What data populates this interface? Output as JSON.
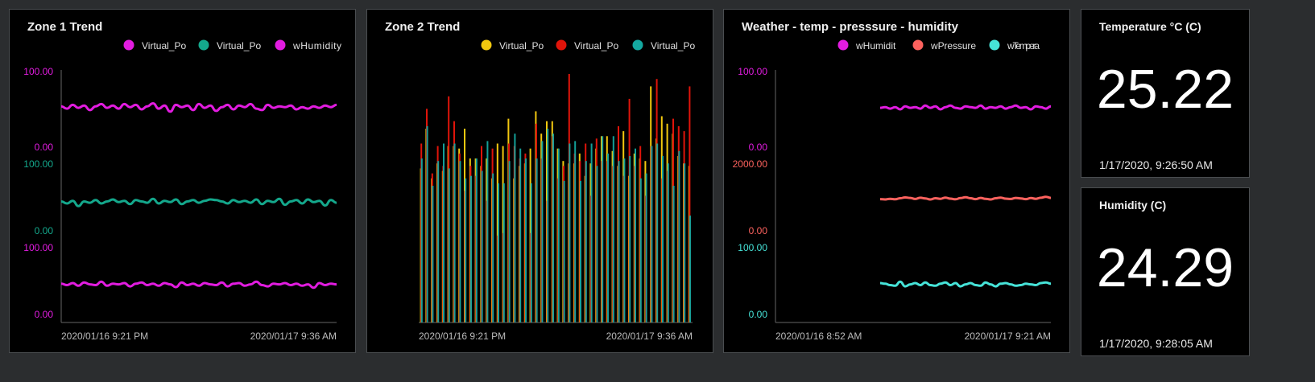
{
  "panels": [
    {
      "title": "Zone 1 Trend"
    },
    {
      "title": "Zone 2 Trend"
    },
    {
      "title": "Weather - temp - presssure - humidity"
    }
  ],
  "tiles": [
    {
      "title": "Temperature °C (C)",
      "value": "25.22",
      "timestamp": "1/17/2020, 9:26:50 AM"
    },
    {
      "title": "Humidity (C)",
      "value": "24.29",
      "timestamp": "1/17/2020, 9:28:05 AM"
    }
  ],
  "chart_data": [
    {
      "type": "line",
      "title": "Zone 1 Trend",
      "legend": [
        "Virtual_Po",
        "Virtual_Po",
        "wHumidity"
      ],
      "legend_placement": "top-right",
      "x_range": [
        "2020/01/16 9:21 PM",
        "2020/01/17 9:36 AM"
      ],
      "x_ticks": [
        "2020/01/16 9:21 PM",
        "2020/01/17 9:36 AM"
      ],
      "series": [
        {
          "name": "Virtual_Po",
          "color": "#e21ce0",
          "ylim": [
            0,
            100
          ],
          "y_ticks": [
            "0.00",
            "100.00"
          ],
          "values": [
            54,
            51,
            56,
            52,
            55,
            49,
            54,
            57,
            52,
            55,
            51,
            57,
            53,
            56,
            50,
            54,
            58,
            51,
            55,
            47,
            56,
            53,
            55,
            49,
            57,
            52,
            55,
            48,
            53,
            56,
            50,
            55,
            53,
            57,
            51,
            49,
            56,
            52,
            54,
            53,
            55,
            50,
            53,
            51,
            54,
            52,
            55,
            53,
            56
          ]
        },
        {
          "name": "Virtual_Po",
          "color": "#14a88c",
          "ylim": [
            0,
            100
          ],
          "y_ticks": [
            "0.00",
            "100.00"
          ],
          "values": [
            44,
            41,
            45,
            37,
            44,
            42,
            46,
            41,
            44,
            47,
            43,
            45,
            40,
            46,
            44,
            42,
            48,
            41,
            45,
            43,
            47,
            40,
            44,
            46,
            42,
            45,
            47,
            46,
            44,
            41,
            46,
            43,
            45,
            42,
            47,
            40,
            45,
            43,
            48,
            39,
            44,
            46,
            41,
            47,
            43,
            45,
            38,
            46,
            42
          ]
        },
        {
          "name": "wHumidity",
          "color": "#e21ce0",
          "ylim": [
            0,
            100
          ],
          "y_ticks": [
            "0.00",
            "100.00"
          ],
          "values": [
            46,
            44,
            47,
            43,
            48,
            45,
            44,
            49,
            43,
            46,
            45,
            47,
            42,
            46,
            48,
            44,
            46,
            43,
            47,
            45,
            41,
            48,
            44,
            46,
            43,
            47,
            45,
            44,
            48,
            42,
            46,
            47,
            43,
            45,
            49,
            44,
            42,
            46,
            45,
            47,
            44,
            46,
            43,
            45,
            40,
            47,
            44,
            46,
            45
          ]
        }
      ]
    },
    {
      "type": "bar",
      "title": "Zone 2 Trend",
      "legend": [
        "Virtual_Po",
        "Virtual_Po",
        "Virtual_Po"
      ],
      "legend_placement": "top-right",
      "x_range": [
        "2020/01/16 9:21 PM",
        "2020/01/17 9:36 AM"
      ],
      "x_ticks": [
        "2020/01/16 9:21 PM",
        "2020/01/17 9:36 AM"
      ],
      "series": [
        {
          "name": "Virtual_Po",
          "color": "#f2c80f",
          "values": [
            62,
            78,
            58,
            64,
            61,
            71,
            71,
            70,
            78,
            66,
            66,
            63,
            66,
            58,
            72,
            71,
            82,
            58,
            63,
            64,
            70,
            85,
            76,
            81,
            81,
            70,
            65,
            64,
            64,
            68,
            59,
            64,
            70,
            75,
            75,
            69,
            63,
            77,
            59,
            68,
            66,
            65,
            95,
            74,
            83,
            80,
            76,
            67,
            64,
            63
          ]
        },
        {
          "name": "Virtual_Po",
          "color": "#e0140a",
          "values": [
            72,
            86,
            60,
            71,
            63,
            91,
            81,
            68,
            53,
            63,
            59,
            71,
            49,
            70,
            35,
            36,
            72,
            71,
            66,
            68,
            36,
            80,
            66,
            49,
            75,
            58,
            63,
            100,
            68,
            65,
            72,
            51,
            74,
            65,
            65,
            63,
            79,
            59,
            90,
            63,
            71,
            51,
            71,
            98,
            58,
            61,
            82,
            79,
            77,
            95
          ]
        },
        {
          "name": "Virtual_Po",
          "color": "#14a8a0",
          "values": [
            66,
            79,
            55,
            65,
            72,
            62,
            72,
            65,
            58,
            59,
            66,
            61,
            73,
            60,
            56,
            56,
            65,
            76,
            70,
            66,
            56,
            66,
            73,
            78,
            76,
            70,
            57,
            72,
            73,
            57,
            65,
            72,
            63,
            75,
            68,
            75,
            65,
            66,
            67,
            70,
            58,
            60,
            71,
            72,
            67,
            64,
            55,
            69,
            64,
            43
          ]
        }
      ]
    },
    {
      "type": "line",
      "title": "Weather - temp - presssure - humidity",
      "legend": [
        "wHumidit",
        "wPressure",
        "wTempera"
      ],
      "legend_placement": "top-right",
      "x_range": [
        "2020/01/16 8:52 AM",
        "2020/01/17 9:21 AM"
      ],
      "x_ticks": [
        "2020/01/16 8:52 AM",
        "2020/01/17 9:21 AM"
      ],
      "data_starts_at_fraction": 0.38,
      "series": [
        {
          "name": "wHumidit",
          "color": "#e21ce0",
          "ylim": [
            0,
            100
          ],
          "y_ticks": [
            "0.00",
            "100.00"
          ],
          "values": [
            52,
            53,
            51,
            53,
            50,
            54,
            52,
            53,
            51,
            55,
            52,
            54,
            50,
            53,
            55,
            52,
            51,
            54,
            53,
            52,
            55,
            51,
            53,
            52,
            54,
            51,
            53,
            55,
            52,
            53,
            50,
            54,
            53,
            51,
            54
          ]
        },
        {
          "name": "wPressure",
          "color": "#fd625e",
          "ylim": [
            0,
            2000
          ],
          "y_ticks": [
            "0.00",
            "2000.00"
          ],
          "values": [
            950,
            940,
            960,
            945,
            975,
            1000,
            985,
            955,
            990,
            970,
            940,
            975,
            960,
            995,
            965,
            945,
            980,
            1005,
            975,
            950,
            985,
            960,
            940,
            975,
            995,
            965,
            955,
            985,
            970,
            950,
            980,
            960,
            990,
            1020,
            985
          ]
        },
        {
          "name": "wTemperature",
          "color": "#46e3d8",
          "ylim": [
            0,
            100
          ],
          "y_ticks": [
            "0.00",
            "100.00"
          ],
          "values": [
            47,
            46,
            44,
            43,
            49,
            42,
            45,
            47,
            44,
            48,
            44,
            43,
            46,
            48,
            44,
            47,
            42,
            45,
            47,
            44,
            43,
            48,
            45,
            42,
            46,
            47,
            45,
            43,
            44,
            46,
            45,
            44,
            47,
            48,
            46
          ]
        }
      ]
    }
  ]
}
